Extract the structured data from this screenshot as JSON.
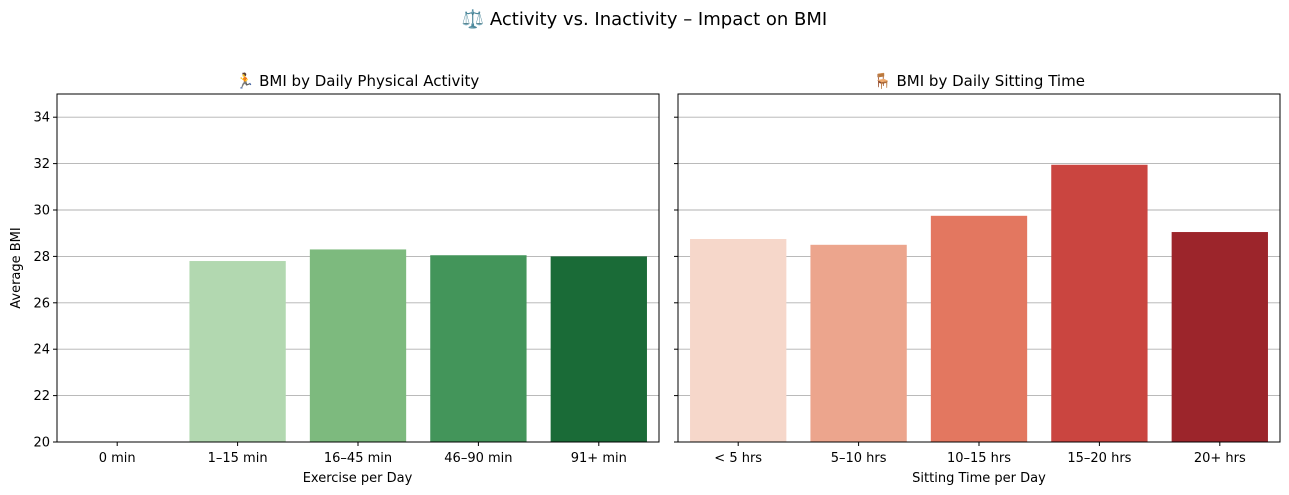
{
  "figure_title": "⚖️ Activity vs. Inactivity – Impact on BMI",
  "shared_ylabel": "Average BMI",
  "chart_data": [
    {
      "type": "bar",
      "title": "🏃 BMI by Daily Physical Activity",
      "xlabel": "Exercise per Day",
      "ylabel": "Average BMI",
      "categories": [
        "0 min",
        "1–15 min",
        "16–45 min",
        "46–90 min",
        "91+ min"
      ],
      "values": [
        null,
        27.8,
        28.3,
        28.05,
        28.0
      ],
      "colors": [
        "#ffffff",
        "#b2d8b0",
        "#7dba7e",
        "#43955a",
        "#1a6b37"
      ],
      "ylim": [
        20,
        35
      ],
      "yticks": [
        20,
        22,
        24,
        26,
        28,
        30,
        32,
        34
      ],
      "grid": "y"
    },
    {
      "type": "bar",
      "title": "🪑 BMI by Daily Sitting Time",
      "xlabel": "Sitting Time per Day",
      "ylabel": "",
      "categories": [
        "< 5 hrs",
        "5–10 hrs",
        "10–15 hrs",
        "15–20 hrs",
        "20+ hrs"
      ],
      "values": [
        28.75,
        28.5,
        29.75,
        31.95,
        29.05
      ],
      "colors": [
        "#f6d7ca",
        "#eca58d",
        "#e37760",
        "#ca4540",
        "#9c252b"
      ],
      "ylim": [
        20,
        35
      ],
      "yticks": [
        20,
        22,
        24,
        26,
        28,
        30,
        32,
        34
      ],
      "grid": "y"
    }
  ]
}
